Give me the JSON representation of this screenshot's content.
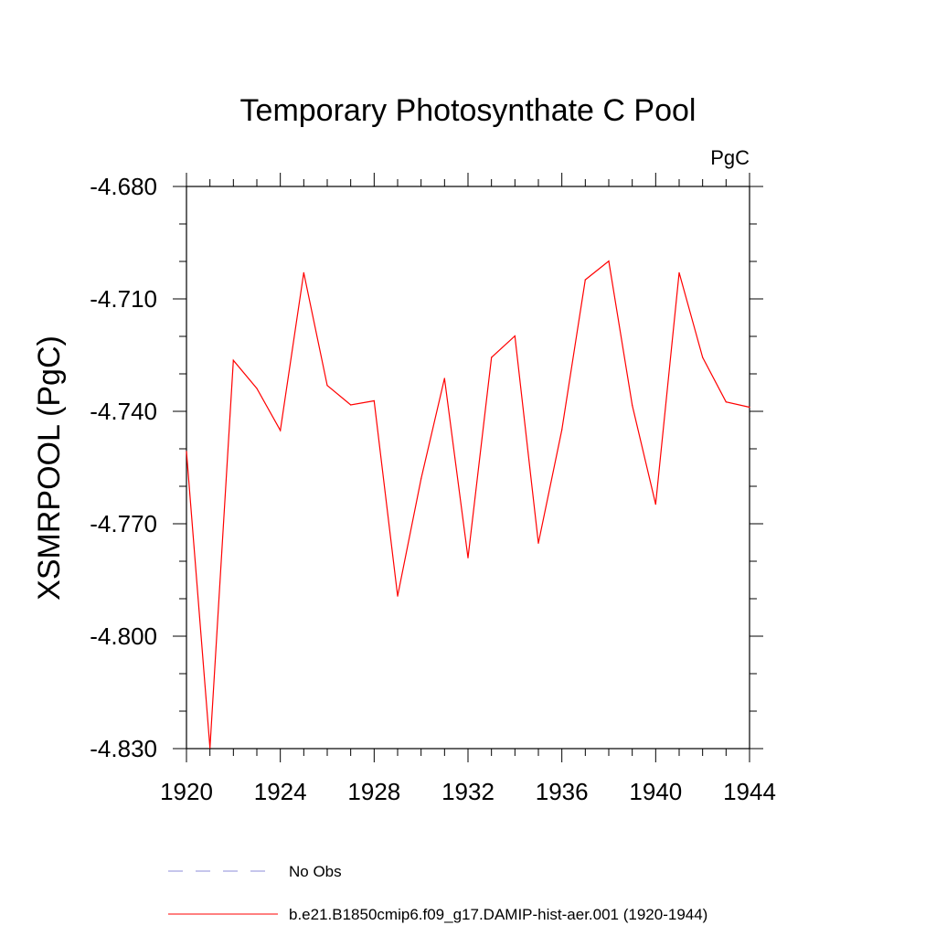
{
  "chart_data": {
    "type": "line",
    "title": "Temporary Photosynthate C Pool",
    "units_label": "PgC",
    "ylabel": "XSMRPOOL  (PgC)",
    "xlabel": "",
    "xlim": [
      1920,
      1944
    ],
    "ylim": [
      -4.83,
      -4.68
    ],
    "xticks": [
      1920,
      1924,
      1928,
      1932,
      1936,
      1940,
      1944
    ],
    "xtick_labels": [
      "1920",
      "1924",
      "1928",
      "1932",
      "1936",
      "1940",
      "1944"
    ],
    "yticks": [
      -4.68,
      -4.71,
      -4.74,
      -4.77,
      -4.8,
      -4.83
    ],
    "ytick_labels": [
      "-4.680",
      "-4.710",
      "-4.740",
      "-4.770",
      "-4.800",
      "-4.830"
    ],
    "grid": false,
    "legend_position": "bottom",
    "series": [
      {
        "name": "b.e21.B1850cmip6.f09_g17.DAMIP-hist-aer.001 (1920-1944)",
        "color": "#ff0000",
        "style": "solid",
        "x": [
          1920,
          1921,
          1922,
          1923,
          1924,
          1925,
          1926,
          1927,
          1928,
          1929,
          1930,
          1931,
          1932,
          1933,
          1934,
          1935,
          1936,
          1937,
          1938,
          1939,
          1940,
          1941,
          1942,
          1943,
          1944
        ],
        "y": [
          -4.7507,
          -4.8298,
          -4.7264,
          -4.7339,
          -4.7451,
          -4.703,
          -4.7331,
          -4.7383,
          -4.7372,
          -4.7893,
          -4.758,
          -4.7312,
          -4.7791,
          -4.7256,
          -4.7199,
          -4.7752,
          -4.7449,
          -4.7049,
          -4.6999,
          -4.7384,
          -4.7648,
          -4.703,
          -4.7256,
          -4.7375,
          -4.7389
        ]
      },
      {
        "name": "No Obs",
        "color": "#8c8cd8",
        "style": "dashed",
        "x": [],
        "y": []
      }
    ]
  }
}
